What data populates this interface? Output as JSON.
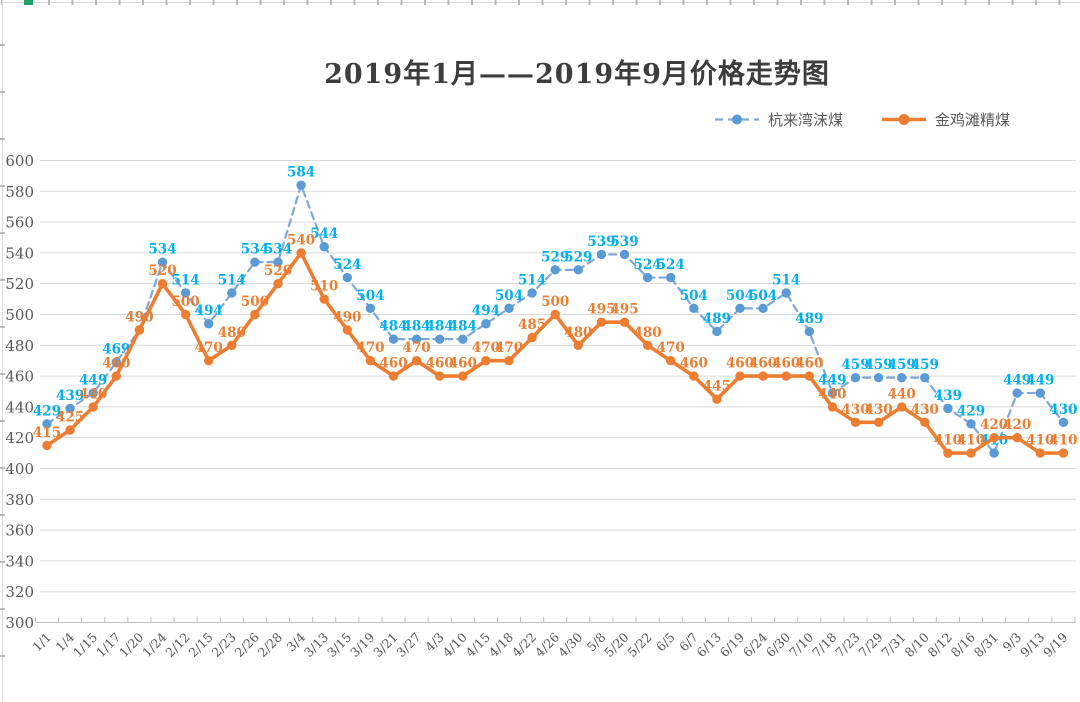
{
  "page": {
    "title": "2019年1月——2019年9月价格走势图",
    "colors": {
      "title_text": "#3d3d3d",
      "axis_text": "#595959",
      "gridline": "#d9d9d9",
      "axis_line": "#bfbfbf",
      "edge_line": "#dcdcdc",
      "edge_tick": "#b9b9b9",
      "edge_tick_green": "#21a366",
      "series1_line": "#7fa8d8",
      "series1_marker": "#5b9bd5",
      "series1_label": "#00b0f0",
      "series2_line": "#ed7d31",
      "series2_marker": "#ed7d31",
      "series2_label": "#ed7d31"
    }
  },
  "legend": {
    "items": [
      {
        "label": "杭来湾沫煤"
      },
      {
        "label": "金鸡滩精煤"
      }
    ]
  },
  "chart_data": {
    "type": "line",
    "title": "2019年1月——2019年9月价格走势图",
    "categories": [
      "1/1",
      "1/4",
      "1/15",
      "1/17",
      "1/20",
      "1/24",
      "2/12",
      "2/15",
      "2/23",
      "2/26",
      "2/28",
      "3/4",
      "3/13",
      "3/15",
      "3/19",
      "3/21",
      "3/27",
      "4/3",
      "4/10",
      "4/15",
      "4/18",
      "4/22",
      "4/26",
      "4/30",
      "5/8",
      "5/20",
      "5/22",
      "6/5",
      "6/7",
      "6/13",
      "6/19",
      "6/24",
      "6/30",
      "7/10",
      "7/18",
      "7/23",
      "7/29",
      "7/31",
      "8/10",
      "8/12",
      "8/16",
      "8/31",
      "9/3",
      "9/13",
      "9/19"
    ],
    "series": [
      {
        "name": "杭来湾沫煤",
        "style": "dashed",
        "values": [
          429,
          439,
          449,
          469,
          490,
          534,
          514,
          494,
          514,
          534,
          534,
          584,
          544,
          524,
          504,
          484,
          484,
          484,
          484,
          494,
          504,
          514,
          529,
          529,
          539,
          539,
          524,
          524,
          504,
          489,
          504,
          504,
          514,
          489,
          449,
          459,
          459,
          459,
          459,
          439,
          429,
          410,
          449,
          449,
          430
        ]
      },
      {
        "name": "金鸡滩精煤",
        "style": "solid",
        "values": [
          415,
          425,
          440,
          460,
          490,
          520,
          500,
          470,
          480,
          500,
          520,
          540,
          510,
          490,
          470,
          460,
          470,
          460,
          460,
          470,
          470,
          485,
          500,
          480,
          495,
          495,
          480,
          470,
          460,
          445,
          460,
          460,
          460,
          460,
          440,
          430,
          430,
          440,
          430,
          410,
          410,
          420,
          420,
          410,
          410
        ]
      }
    ],
    "ylim": [
      300,
      600
    ],
    "ytick_step": 20,
    "grid": true,
    "data_labels": true,
    "legend_position": "top-right",
    "xlabel": "",
    "ylabel": ""
  }
}
